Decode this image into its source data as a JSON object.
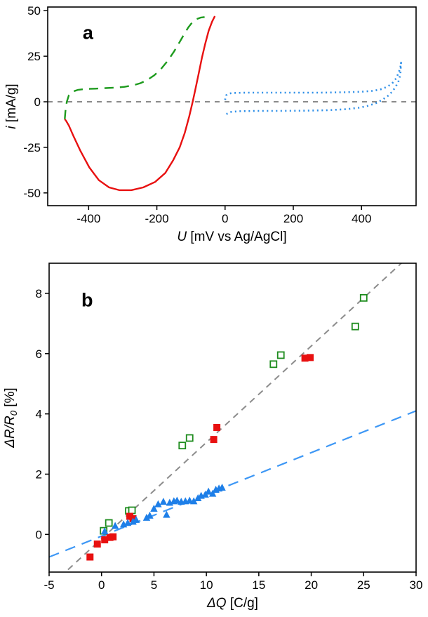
{
  "figure": {
    "panels": [
      "a",
      "b"
    ]
  },
  "chart_data": [
    {
      "id": "panel-a",
      "type": "line",
      "panel_label": "a",
      "title": "",
      "xlabel": "U [mV vs Ag/AgCl]",
      "ylabel": "i [mA/g]",
      "xlim": [
        -520,
        560
      ],
      "ylim": [
        -57,
        52
      ],
      "xticks": [
        -400,
        -200,
        0,
        200,
        400
      ],
      "yticks": [
        -50,
        -25,
        0,
        25,
        50
      ],
      "zero_line": true,
      "grid": false,
      "legend": "none",
      "label_pos": [
        0.095,
        0.16
      ],
      "series": [
        {
          "name": "cv-negative-window-cathodic-red-solid",
          "color": "#e81010",
          "dash": "none",
          "width": 2.4,
          "points": [
            [
              -30,
              47
            ],
            [
              -38,
              44
            ],
            [
              -48,
              39
            ],
            [
              -58,
              32
            ],
            [
              -68,
              24
            ],
            [
              -78,
              15
            ],
            [
              -88,
              6
            ],
            [
              -95,
              0
            ],
            [
              -105,
              -8
            ],
            [
              -118,
              -17
            ],
            [
              -133,
              -25
            ],
            [
              -152,
              -32
            ],
            [
              -175,
              -39
            ],
            [
              -205,
              -44
            ],
            [
              -240,
              -47
            ],
            [
              -275,
              -48.5
            ],
            [
              -310,
              -48.5
            ],
            [
              -340,
              -47
            ],
            [
              -370,
              -43
            ],
            [
              -398,
              -36
            ],
            [
              -424,
              -27
            ],
            [
              -444,
              -19
            ],
            [
              -458,
              -13
            ],
            [
              -466,
              -10.5
            ],
            [
              -470,
              -9.5
            ]
          ]
        },
        {
          "name": "cv-negative-window-anodic-green-dashed",
          "color": "#1e9b1e",
          "dash": "13 9",
          "width": 2.4,
          "points": [
            [
              -470,
              -9.5
            ],
            [
              -468,
              -5
            ],
            [
              -464,
              0
            ],
            [
              -458,
              3.5
            ],
            [
              -448,
              5.5
            ],
            [
              -432,
              6.5
            ],
            [
              -410,
              7
            ],
            [
              -380,
              7.2
            ],
            [
              -350,
              7.5
            ],
            [
              -320,
              7.8
            ],
            [
              -295,
              8.2
            ],
            [
              -270,
              9
            ],
            [
              -248,
              10.2
            ],
            [
              -228,
              12
            ],
            [
              -208,
              14.5
            ],
            [
              -188,
              18
            ],
            [
              -168,
              22.5
            ],
            [
              -150,
              27.5
            ],
            [
              -134,
              32.5
            ],
            [
              -120,
              37
            ],
            [
              -108,
              40.8
            ],
            [
              -96,
              43.6
            ],
            [
              -84,
              45.3
            ],
            [
              -72,
              46.2
            ],
            [
              -60,
              46.5
            ]
          ]
        },
        {
          "name": "cv-positive-window-blue-dotted",
          "color": "#2e8fe8",
          "dash": "2 4.5",
          "width": 2.6,
          "points": [
            [
              0,
              1
            ],
            [
              3,
              3.5
            ],
            [
              8,
              4.3
            ],
            [
              20,
              4.8
            ],
            [
              60,
              5
            ],
            [
              120,
              5
            ],
            [
              200,
              5
            ],
            [
              280,
              5
            ],
            [
              350,
              5.2
            ],
            [
              400,
              5.5
            ],
            [
              435,
              6
            ],
            [
              460,
              7
            ],
            [
              478,
              8.5
            ],
            [
              492,
              10.5
            ],
            [
              502,
              13
            ],
            [
              509,
              16
            ],
            [
              514,
              19
            ],
            [
              516,
              21.5
            ],
            [
              514,
              15
            ],
            [
              509,
              11.5
            ],
            [
              501,
              8.5
            ],
            [
              490,
              5.5
            ],
            [
              476,
              3
            ],
            [
              460,
              1
            ],
            [
              442,
              -0.8
            ],
            [
              420,
              -2.2
            ],
            [
              395,
              -3.2
            ],
            [
              360,
              -4
            ],
            [
              300,
              -4.6
            ],
            [
              230,
              -4.9
            ],
            [
              160,
              -5
            ],
            [
              90,
              -5
            ],
            [
              40,
              -5.2
            ],
            [
              15,
              -5.6
            ],
            [
              6,
              -6.5
            ],
            [
              2,
              -7.8
            ],
            [
              0,
              -8.2
            ]
          ]
        }
      ]
    },
    {
      "id": "panel-b",
      "type": "scatter",
      "panel_label": "b",
      "title": "",
      "xlabel": "ΔQ [C/g]",
      "ylabel": "ΔR/R₀ [%]",
      "xlim": [
        -5,
        30
      ],
      "ylim": [
        -1.25,
        9
      ],
      "xticks": [
        -5,
        0,
        5,
        10,
        15,
        20,
        25,
        30
      ],
      "yticks": [
        0,
        2,
        4,
        6,
        8
      ],
      "zero_line": false,
      "grid": false,
      "legend": "none",
      "label_pos": [
        0.088,
        0.14
      ],
      "lines": [
        {
          "name": "fit-line-steep-gray-dashed",
          "color": "#8c8c8c",
          "dash": "9 7",
          "width": 2,
          "points": [
            [
              -3.2,
              -1.17
            ],
            [
              30.5,
              9.61
            ]
          ]
        },
        {
          "name": "fit-line-shallow-blue-dashed",
          "color": "#3d97f5",
          "dash": "15 10",
          "width": 2.2,
          "points": [
            [
              -5,
              -0.75
            ],
            [
              30,
              4.1
            ]
          ]
        }
      ],
      "series": [
        {
          "name": "green-open-squares",
          "marker": "square-open",
          "color": "#1e8c1e",
          "points": [
            [
              0.2,
              0.12
            ],
            [
              0.7,
              0.38
            ],
            [
              2.6,
              0.78
            ],
            [
              2.9,
              0.8
            ],
            [
              7.7,
              2.95
            ],
            [
              8.4,
              3.2
            ],
            [
              16.4,
              5.65
            ],
            [
              17.1,
              5.95
            ],
            [
              24.2,
              6.9
            ],
            [
              25.0,
              7.85
            ]
          ]
        },
        {
          "name": "red-filled-squares",
          "marker": "square",
          "color": "#e81010",
          "points": [
            [
              -1.1,
              -0.75
            ],
            [
              -0.4,
              -0.32
            ],
            [
              0.3,
              -0.18
            ],
            [
              0.8,
              -0.1
            ],
            [
              1.1,
              -0.08
            ],
            [
              2.7,
              0.6
            ],
            [
              3.0,
              0.52
            ],
            [
              10.7,
              3.15
            ],
            [
              11.0,
              3.55
            ],
            [
              19.4,
              5.85
            ],
            [
              19.9,
              5.87
            ]
          ]
        },
        {
          "name": "blue-filled-triangles",
          "marker": "triangle",
          "color": "#1e7fe8",
          "points": [
            [
              0.3,
              0.1
            ],
            [
              1.3,
              0.28
            ],
            [
              2.1,
              0.33
            ],
            [
              2.5,
              0.38
            ],
            [
              3.0,
              0.42
            ],
            [
              3.3,
              0.48
            ],
            [
              4.3,
              0.55
            ],
            [
              4.6,
              0.62
            ],
            [
              5.0,
              0.85
            ],
            [
              5.4,
              1.0
            ],
            [
              5.9,
              1.08
            ],
            [
              6.2,
              0.65
            ],
            [
              6.5,
              1.05
            ],
            [
              6.9,
              1.1
            ],
            [
              7.2,
              1.12
            ],
            [
              7.6,
              1.08
            ],
            [
              8.0,
              1.1
            ],
            [
              8.4,
              1.12
            ],
            [
              8.8,
              1.1
            ],
            [
              9.2,
              1.2
            ],
            [
              9.5,
              1.28
            ],
            [
              9.9,
              1.32
            ],
            [
              10.2,
              1.42
            ],
            [
              10.6,
              1.35
            ],
            [
              10.9,
              1.48
            ],
            [
              11.2,
              1.52
            ],
            [
              11.5,
              1.55
            ]
          ]
        }
      ]
    }
  ]
}
